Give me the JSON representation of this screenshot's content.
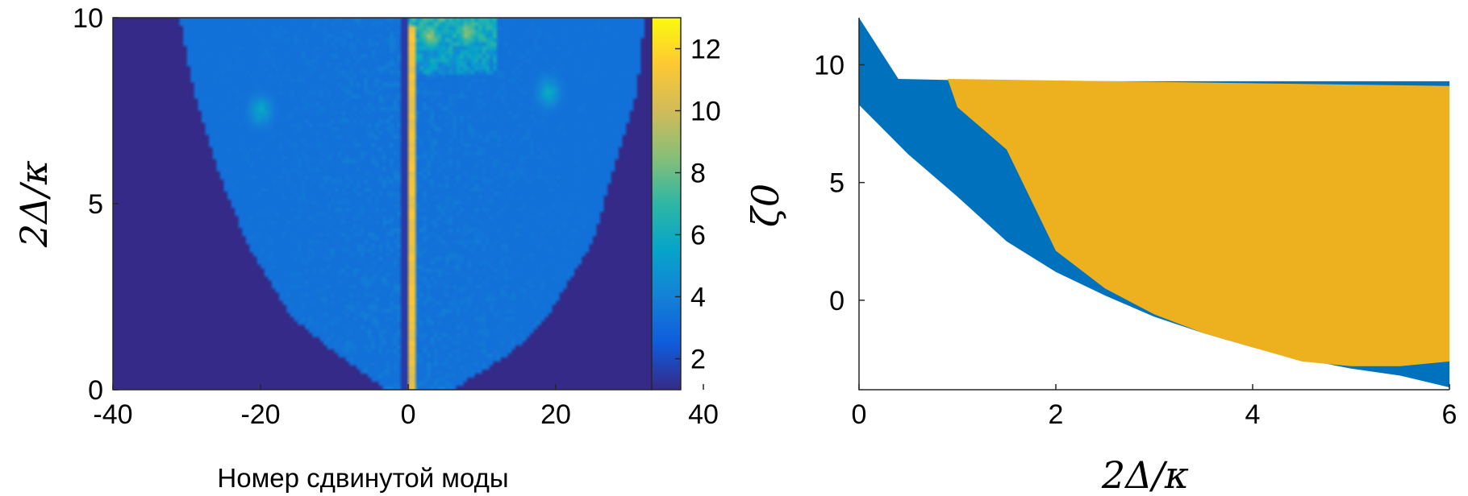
{
  "colors": {
    "background_low": "#352a87",
    "colormap": [
      "#352a87",
      "#0f5cdd",
      "#1481d6",
      "#06a4ca",
      "#2eb7a4",
      "#87bf77",
      "#d1bb59",
      "#fec832",
      "#f9fb0e"
    ],
    "region_blue": "#0072bd",
    "region_orange": "#edb120"
  },
  "chart_data": [
    {
      "type": "heatmap",
      "title": "",
      "xlabel": "Номер сдвинутой моды",
      "ylabel": "2Δ/κ",
      "xlim": [
        -40,
        33
      ],
      "ylim": [
        0,
        10
      ],
      "xticks": [
        "-40",
        "-20",
        "0",
        "20",
        "40"
      ],
      "xtick_values": [
        -40,
        -20,
        0,
        20,
        40
      ],
      "yticks": [
        "0",
        "5",
        "10"
      ],
      "ytick_values": [
        0,
        5,
        10
      ],
      "colorbar": {
        "label": "ζ0",
        "range": [
          1,
          13
        ],
        "ticks": [
          "2",
          "4",
          "6",
          "8",
          "10",
          "12"
        ],
        "tick_values": [
          2,
          4,
          6,
          8,
          10,
          12
        ]
      },
      "approx_structure": {
        "lobe_edge_points": [
          {
            "y": 0,
            "left_x": -3,
            "right_x": 6
          },
          {
            "y": 1,
            "left_x": -10,
            "right_x": 14
          },
          {
            "y": 2,
            "left_x": -16,
            "right_x": 19
          },
          {
            "y": 4,
            "left_x": -22,
            "right_x": 25
          },
          {
            "y": 6,
            "left_x": -26,
            "right_x": 28
          },
          {
            "y": 8,
            "left_x": -29,
            "right_x": 31
          },
          {
            "y": 10,
            "left_x": -31,
            "right_x": 32
          }
        ],
        "lobe_value": 3.3,
        "dark_line_x": -0.4,
        "dark_line_value": 1.5,
        "bright_line_x": 0.4,
        "bright_line_value": 11.5,
        "hotspots": [
          {
            "x": -20,
            "y": 7.5,
            "value": 6
          },
          {
            "x": 19,
            "y": 8,
            "value": 6
          },
          {
            "x": 3,
            "y": 9.5,
            "value": 10
          },
          {
            "x": 8,
            "y": 9.6,
            "value": 9.5
          }
        ]
      }
    },
    {
      "type": "area",
      "title": "",
      "xlabel": "2Δ/κ",
      "ylabel": "",
      "xlim": [
        0,
        6
      ],
      "ylim": [
        -3.8,
        12
      ],
      "xticks": [
        "0",
        "2",
        "4",
        "6"
      ],
      "xtick_values": [
        0,
        2,
        4,
        6
      ],
      "yticks": [
        "0",
        "5",
        "10"
      ],
      "ytick_values": [
        0,
        5,
        10
      ],
      "series": [
        {
          "color": "#0072bd",
          "upper": [
            [
              0,
              12
            ],
            [
              0.4,
              9.4
            ],
            [
              1.5,
              9.3
            ],
            [
              6,
              9.3
            ]
          ],
          "lower": [
            [
              0,
              8.3
            ],
            [
              0.5,
              6.2
            ],
            [
              1,
              4.4
            ],
            [
              1.5,
              2.5
            ],
            [
              2,
              1.2
            ],
            [
              2.5,
              0.2
            ],
            [
              3,
              -0.7
            ],
            [
              3.5,
              -1.4
            ],
            [
              4,
              -2
            ],
            [
              4.5,
              -2.5
            ],
            [
              5,
              -2.9
            ],
            [
              5.5,
              -3.2
            ],
            [
              6,
              -3.7
            ]
          ]
        },
        {
          "color": "#edb120",
          "upper": [
            [
              0.9,
              9.4
            ],
            [
              6,
              9.1
            ]
          ],
          "lower": [
            [
              0.9,
              9.4
            ],
            [
              1,
              8.2
            ],
            [
              1.5,
              6.4
            ],
            [
              2,
              2.1
            ],
            [
              2.5,
              0.5
            ],
            [
              3,
              -0.6
            ],
            [
              3.5,
              -1.4
            ],
            [
              4,
              -2
            ],
            [
              4.5,
              -2.6
            ],
            [
              5,
              -2.8
            ],
            [
              5.5,
              -2.8
            ],
            [
              6,
              -2.6
            ]
          ]
        }
      ]
    }
  ]
}
